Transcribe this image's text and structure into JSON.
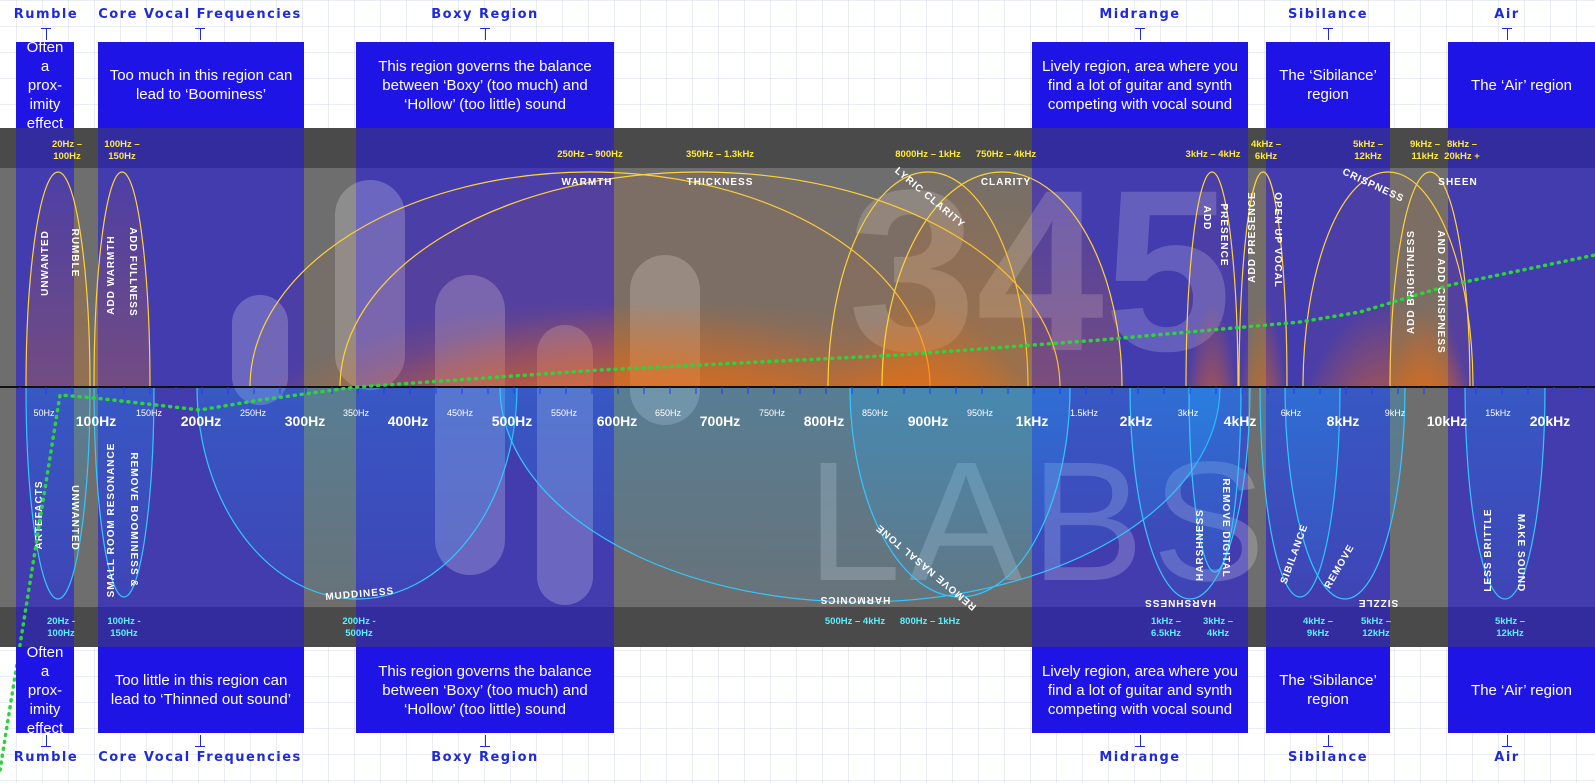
{
  "region_labels_top": [
    {
      "id": "rumble",
      "text": "Rumble"
    },
    {
      "id": "core",
      "text": "Core Vocal Frequencies"
    },
    {
      "id": "boxy",
      "text": "Boxy Region"
    },
    {
      "id": "midrange",
      "text": "Midrange"
    },
    {
      "id": "sibilance",
      "text": "Sibilance"
    },
    {
      "id": "air",
      "text": "Air"
    }
  ],
  "region_labels_bottom": [
    {
      "id": "rumble",
      "text": "Rumble"
    },
    {
      "id": "core",
      "text": "Core Vocal Frequencies"
    },
    {
      "id": "boxy",
      "text": "Boxy Region"
    },
    {
      "id": "midrange",
      "text": "Midrange"
    },
    {
      "id": "sibilance",
      "text": "Sibilance"
    },
    {
      "id": "air",
      "text": "Air"
    }
  ],
  "boxes_top": [
    {
      "id": "rumble",
      "lines": [
        "Often",
        "a prox-",
        "imity",
        "effect"
      ]
    },
    {
      "id": "core",
      "lines": [
        "Too much in this region can",
        "lead to ‘Boominess’"
      ]
    },
    {
      "id": "boxy",
      "lines": [
        "This region governs the balance",
        "between ‘Boxy’ (too much) and",
        "‘Hollow’ (too little) sound"
      ]
    },
    {
      "id": "midrange",
      "lines": [
        "Lively region, area where you",
        "find a lot of guitar and synth",
        "competing with vocal sound"
      ]
    },
    {
      "id": "sibilance",
      "lines": [
        "The ‘Sibilance’",
        "region"
      ]
    },
    {
      "id": "air",
      "lines": [
        "The ‘Air’ region"
      ]
    }
  ],
  "boxes_bottom": [
    {
      "id": "rumble",
      "lines": [
        "Often",
        "a prox-",
        "imity",
        "effect"
      ]
    },
    {
      "id": "core",
      "lines": [
        "Too little in this region can",
        "lead to ‘Thinned out sound’"
      ]
    },
    {
      "id": "boxy",
      "lines": [
        "This region governs the balance",
        "between ‘Boxy’ (too much) and",
        "‘Hollow’ (too little) sound"
      ]
    },
    {
      "id": "midrange",
      "lines": [
        "Lively region, area where you",
        "find a lot of guitar and synth",
        "competing with vocal sound"
      ]
    },
    {
      "id": "sibilance",
      "lines": [
        "The ‘Sibilance’",
        "region"
      ]
    },
    {
      "id": "air",
      "lines": [
        "The ‘Air’ region"
      ]
    }
  ],
  "axis_major": [
    "100Hz",
    "200Hz",
    "300Hz",
    "400Hz",
    "500Hz",
    "600Hz",
    "700Hz",
    "800Hz",
    "900Hz",
    "1kHz",
    "2kHz",
    "4kHz",
    "8kHz",
    "10kHz",
    "20kHz"
  ],
  "axis_minor": [
    "50Hz",
    "150Hz",
    "250Hz",
    "350Hz",
    "450Hz",
    "550Hz",
    "650Hz",
    "750Hz",
    "850Hz",
    "950Hz",
    "1.5kHz",
    "3kHz",
    "6kHz",
    "9kHz",
    "15kHz"
  ],
  "upper_ranges": [
    {
      "id": "u1",
      "lines": [
        "20Hz –",
        "100Hz"
      ]
    },
    {
      "id": "u2",
      "lines": [
        "100Hz –",
        "150Hz"
      ]
    },
    {
      "id": "u3",
      "lines": [
        "250Hz – 900Hz"
      ]
    },
    {
      "id": "u4",
      "lines": [
        "350Hz – 1.3kHz"
      ]
    },
    {
      "id": "u5",
      "lines": [
        "8000Hz – 1kHz"
      ]
    },
    {
      "id": "u6",
      "lines": [
        "750Hz – 4kHz"
      ]
    },
    {
      "id": "u7",
      "lines": [
        "3kHz – 4kHz"
      ]
    },
    {
      "id": "u8",
      "lines": [
        "4kHz –",
        "6kHz"
      ]
    },
    {
      "id": "u9",
      "lines": [
        "5kHz –",
        "12kHz"
      ]
    },
    {
      "id": "u10",
      "lines": [
        "9kHz –",
        "11kHz"
      ]
    },
    {
      "id": "u11",
      "lines": [
        "8kHz –",
        "20kHz +"
      ]
    }
  ],
  "lower_ranges": [
    {
      "id": "l1",
      "lines": [
        "20Hz -",
        "100Hz"
      ]
    },
    {
      "id": "l2",
      "lines": [
        "100Hz -",
        "150Hz"
      ]
    },
    {
      "id": "l3",
      "lines": [
        "200Hz -",
        "500Hz"
      ]
    },
    {
      "id": "l4",
      "lines": [
        "500Hz – 4kHz"
      ]
    },
    {
      "id": "l5",
      "lines": [
        "800Hz – 1kHz"
      ]
    },
    {
      "id": "l6",
      "lines": [
        "1kHz –",
        "6.5kHz"
      ]
    },
    {
      "id": "l7",
      "lines": [
        "3kHz –",
        "4kHz"
      ]
    },
    {
      "id": "l8",
      "lines": [
        "4kHz –",
        "9kHz"
      ]
    },
    {
      "id": "l9",
      "lines": [
        "5kHz –",
        "12kHz"
      ]
    },
    {
      "id": "l10",
      "lines": [
        "5kHz –",
        "12kHz"
      ]
    }
  ],
  "boost_labels": {
    "unwanted": "UNWANTED",
    "rumble": "RUMBLE",
    "add_warmth": "ADD WARMTH",
    "add_fullness": "ADD FULLNESS",
    "warmth": "WARMTH",
    "thickness": "THICKNESS",
    "lyric_clarity": "LYRIC CLARITY",
    "clarity": "CLARITY",
    "add": "ADD",
    "presence": "PRESENCE",
    "add_presence": "ADD PRESENCE",
    "open_up_vocal": "OPEN UP VOCAL",
    "crispness": "CRISPNESS",
    "sheen": "SHEEN",
    "add_brightness": "ADD BRIGHTNESS",
    "add_crispness": "AND ADD CRISPNESS"
  },
  "cut_labels": {
    "artefacts": "ARTEFACTS",
    "unwanted": "UNWANTED",
    "small_room": "SMALL ROOM RESONANCE",
    "remove_boominess": "REMOVE BOOMINESS &",
    "muddiness": "MUDDINESS",
    "harmonics": "HARMONICS",
    "remove_nasal": "REMOVE NASAL TONE",
    "harshness_v": "HARSHNESS",
    "harshness_h": "HARSHNESS",
    "remove_digital": "REMOVE DIGITAL",
    "sibilance": "SIBILANCE",
    "remove": "REMOVE",
    "sizzle": "SIZZLE",
    "less_brittle": "LESS BRITTLE",
    "make_sound": "MAKE SOUND"
  },
  "watermark": {
    "numbers": "345",
    "word": "LABS"
  },
  "colors": {
    "brand_blue": "#1f14e6",
    "label_blue": "#1f2bd6",
    "boost": "#ff7a00",
    "cut": "#1a9cff",
    "curve": "#22d43a",
    "range_yellow": "#ffe93a",
    "range_cyan": "#5cf0ff"
  }
}
